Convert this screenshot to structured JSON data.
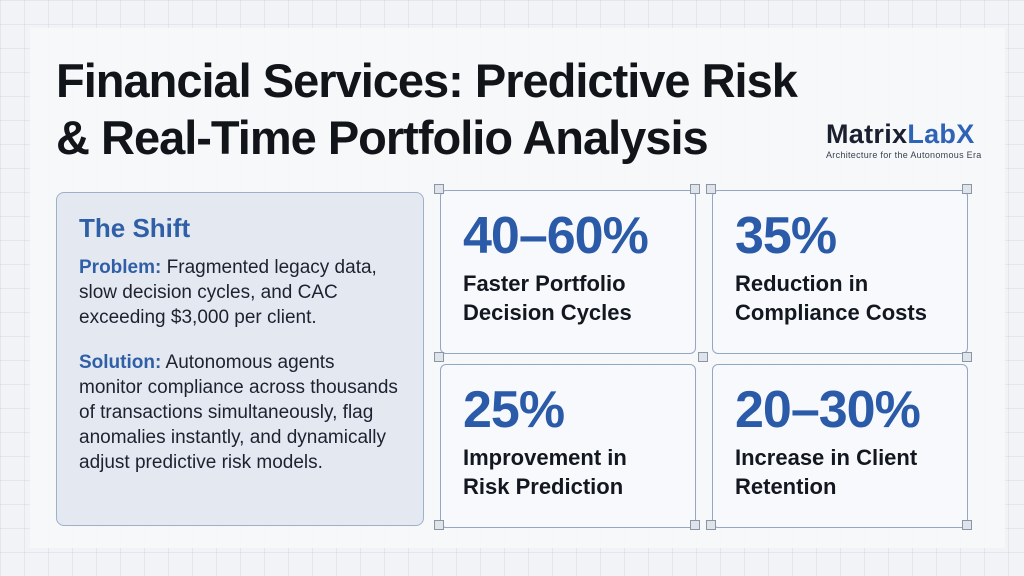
{
  "title_line1": "Financial Services: Predictive Risk",
  "title_line2": "& Real-Time Portfolio Analysis",
  "brand": {
    "name_part1": "Matrix",
    "name_part2": "LabX",
    "tagline": "Architecture for the Autonomous Era"
  },
  "shift": {
    "heading": "The Shift",
    "problem_label": "Problem:",
    "problem_text": " Fragmented legacy data, slow decision cycles, and CAC exceeding $3,000 per client.",
    "solution_label": "Solution:",
    "solution_text": " Autonomous agents monitor compliance across thousands of transactions simultaneously, flag anomalies instantly, and dynamically adjust predictive risk models."
  },
  "stats": [
    {
      "value": "40–60%",
      "label_line1": "Faster Portfolio",
      "label_line2": "Decision Cycles"
    },
    {
      "value": "35%",
      "label_line1": "Reduction in",
      "label_line2": "Compliance Costs"
    },
    {
      "value": "25%",
      "label_line1": "Improvement in",
      "label_line2": "Risk Prediction"
    },
    {
      "value": "20–30%",
      "label_line1": "Increase in Client",
      "label_line2": "Retention"
    }
  ],
  "colors": {
    "accent": "#2f5fa6",
    "background": "#f1f3f6"
  }
}
